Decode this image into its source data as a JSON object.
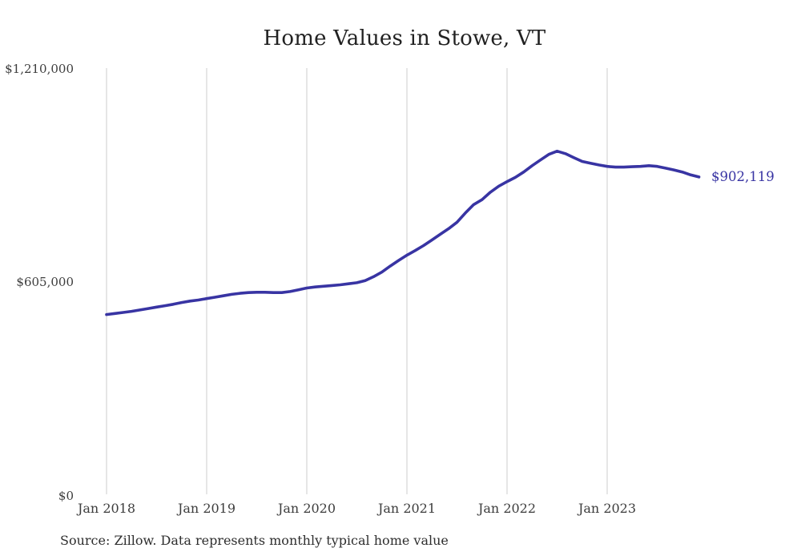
{
  "chart": {
    "title": "Home Values in Stowe, VT",
    "end_label": "$902,119",
    "source_note": "Source: Zillow. Data represents monthly typical home value",
    "y_axis": {
      "ticks": [
        "$1,210,000",
        "$605,000",
        "$0"
      ]
    },
    "x_axis": {
      "ticks": [
        "Jan 2018",
        "Jan 2019",
        "Jan 2020",
        "Jan 2021",
        "Jan 2022",
        "Jan 2023"
      ]
    },
    "colors": {
      "line": "#3834a3",
      "gridline": "#cccccc",
      "title_text": "#212121",
      "axis_text": "#3d3d3d",
      "end_label_text": "#3834a3",
      "source_text": "#2e2e2e",
      "background": "#ffffff"
    }
  },
  "chart_data": {
    "type": "line",
    "title": "Home Values in Stowe, VT",
    "source": "Source: Zillow. Data represents monthly typical home value",
    "x_start": "Jan 2018",
    "x_end": "Dec 2023",
    "x_interval": "monthly",
    "x_tick_labels": [
      "Jan 2018",
      "Jan 2019",
      "Jan 2020",
      "Jan 2021",
      "Jan 2022",
      "Jan 2023"
    ],
    "ylim": [
      0,
      1210000
    ],
    "y_tick_values": [
      0,
      605000,
      1210000
    ],
    "y_tick_labels": [
      "$0",
      "$605,000",
      "$1,210,000"
    ],
    "grid": "vertical-only",
    "legend": "none",
    "last_point_value": 902119,
    "last_point_label": "$902,119",
    "series": [
      {
        "name": "Typical home value",
        "color": "#3834a3",
        "values": [
          513000,
          516000,
          519000,
          522000,
          526000,
          530000,
          534000,
          538000,
          542000,
          547000,
          551000,
          554000,
          558000,
          562000,
          566000,
          570000,
          573000,
          575000,
          576000,
          576000,
          575000,
          575000,
          578000,
          583000,
          588000,
          591000,
          593000,
          595000,
          597000,
          600000,
          603000,
          609000,
          620000,
          633000,
          650000,
          666000,
          681000,
          694000,
          708000,
          724000,
          740000,
          756000,
          774000,
          800000,
          824000,
          838000,
          859000,
          876000,
          889000,
          901000,
          916000,
          934000,
          950000,
          966000,
          975000,
          968000,
          957000,
          946000,
          941000,
          936000,
          932000,
          930000,
          930000,
          931000,
          932000,
          934000,
          932000,
          927000,
          922000,
          916000,
          908000,
          902119
        ]
      }
    ]
  }
}
